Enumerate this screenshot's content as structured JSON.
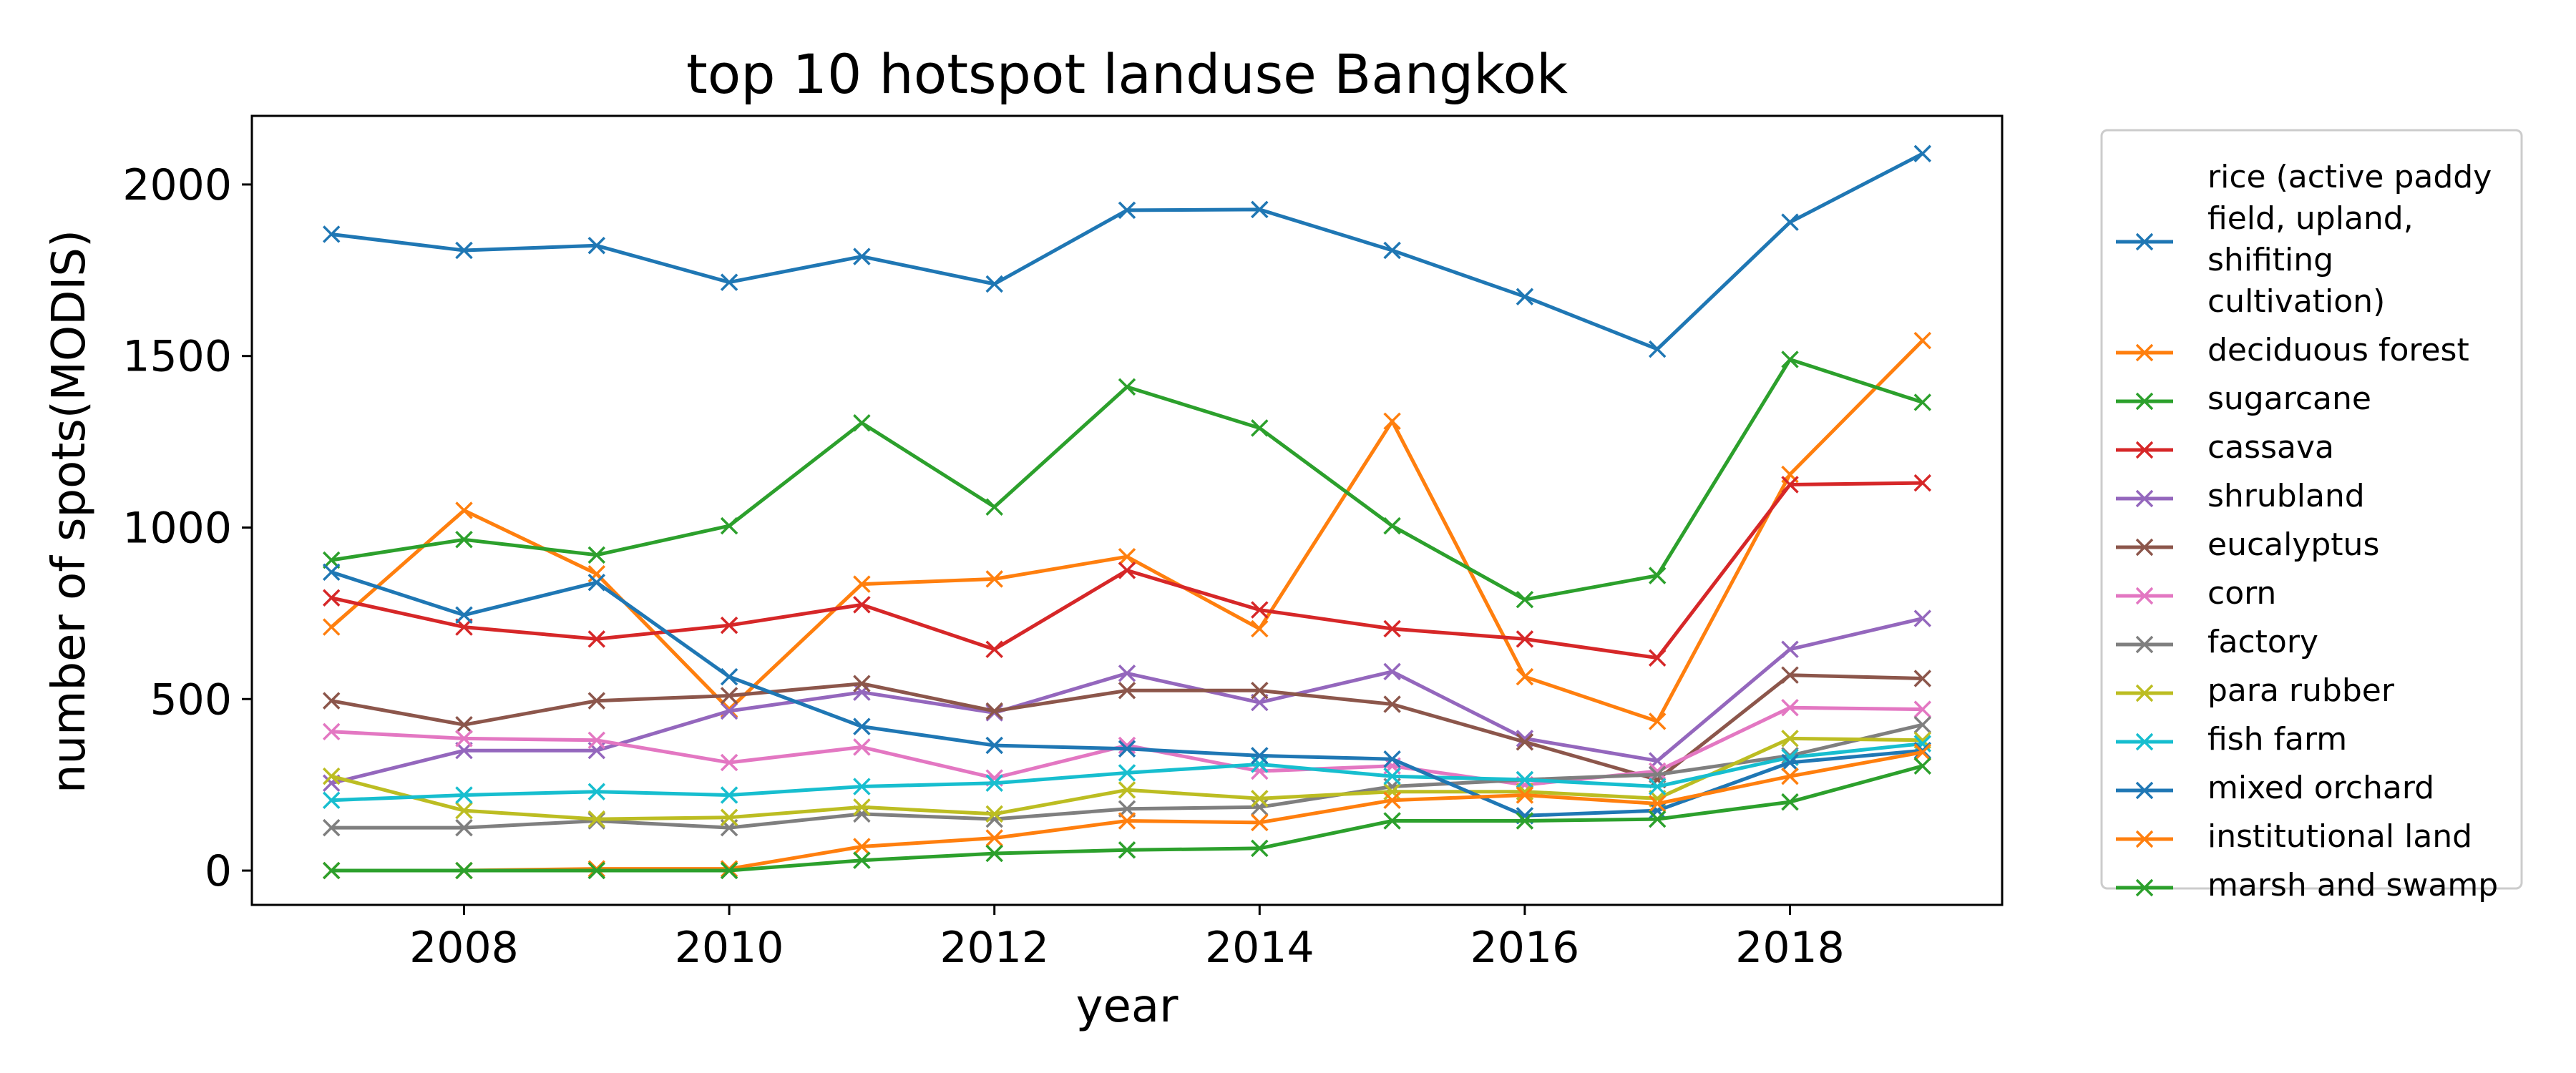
{
  "chart_data": {
    "type": "line",
    "title": "top 10 hotspot landuse Bangkok",
    "xlabel": "year",
    "ylabel": "number of spots(MODIS)",
    "x": [
      2007,
      2008,
      2009,
      2010,
      2011,
      2012,
      2013,
      2014,
      2015,
      2016,
      2017,
      2018,
      2019
    ],
    "xlim": [
      2006.4,
      2019.6
    ],
    "ylim": [
      -100,
      2200
    ],
    "xticks": [
      2008,
      2010,
      2012,
      2014,
      2016,
      2018
    ],
    "yticks": [
      0,
      500,
      1000,
      1500,
      2000
    ],
    "grid": false,
    "legend_position": "outside-right",
    "marker": "x",
    "series": [
      {
        "name": "rice (active paddy field, upland, shifiting cultivation)",
        "legend_lines": [
          "rice (active paddy",
          "field, upland,",
          "shifiting",
          "cultivation)"
        ],
        "color": "#1f77b4",
        "values": [
          1855,
          1808,
          1822,
          1715,
          1790,
          1710,
          1925,
          1927,
          1808,
          1673,
          1520,
          1890,
          2090
        ]
      },
      {
        "name": "deciduous forest",
        "legend_lines": [
          "deciduous forest"
        ],
        "color": "#ff7f0e",
        "values": [
          710,
          1050,
          865,
          470,
          835,
          850,
          915,
          705,
          1310,
          565,
          435,
          1155,
          1545
        ]
      },
      {
        "name": "sugarcane",
        "legend_lines": [
          "sugarcane"
        ],
        "color": "#2ca02c",
        "values": [
          905,
          965,
          920,
          1005,
          1305,
          1060,
          1410,
          1290,
          1005,
          790,
          860,
          1490,
          1365
        ]
      },
      {
        "name": "cassava",
        "legend_lines": [
          "cassava"
        ],
        "color": "#d62728",
        "values": [
          795,
          710,
          675,
          715,
          775,
          645,
          875,
          760,
          705,
          675,
          620,
          1125,
          1130
        ]
      },
      {
        "name": "shrubland",
        "legend_lines": [
          "shrubland"
        ],
        "color": "#9467bd",
        "values": [
          255,
          350,
          350,
          465,
          520,
          460,
          575,
          490,
          580,
          385,
          320,
          645,
          735
        ]
      },
      {
        "name": "eucalyptus",
        "legend_lines": [
          "eucalyptus"
        ],
        "color": "#8c564b",
        "values": [
          495,
          425,
          495,
          510,
          545,
          465,
          525,
          525,
          485,
          375,
          265,
          570,
          560
        ]
      },
      {
        "name": "corn",
        "legend_lines": [
          "corn"
        ],
        "color": "#e377c2",
        "values": [
          405,
          385,
          380,
          315,
          360,
          270,
          365,
          290,
          305,
          250,
          290,
          475,
          470
        ]
      },
      {
        "name": "factory",
        "legend_lines": [
          "factory"
        ],
        "color": "#7f7f7f",
        "values": [
          125,
          125,
          145,
          125,
          165,
          150,
          180,
          185,
          245,
          265,
          280,
          335,
          425
        ]
      },
      {
        "name": "para rubber",
        "legend_lines": [
          "para rubber"
        ],
        "color": "#bcbd22",
        "values": [
          275,
          175,
          150,
          155,
          185,
          165,
          235,
          210,
          230,
          230,
          210,
          385,
          380
        ]
      },
      {
        "name": "fish farm",
        "legend_lines": [
          "fish farm"
        ],
        "color": "#17becf",
        "values": [
          205,
          220,
          230,
          220,
          245,
          255,
          285,
          310,
          275,
          265,
          245,
          330,
          370
        ]
      },
      {
        "name": "mixed orchard",
        "legend_lines": [
          "mixed orchard"
        ],
        "color": "#1f77b4",
        "values": [
          870,
          745,
          840,
          565,
          420,
          365,
          355,
          335,
          325,
          160,
          175,
          315,
          350
        ]
      },
      {
        "name": "institutional land",
        "legend_lines": [
          "institutional land"
        ],
        "color": "#ff7f0e",
        "values": [
          0,
          0,
          5,
          5,
          70,
          95,
          145,
          140,
          205,
          220,
          195,
          275,
          345
        ]
      },
      {
        "name": "marsh and swamp",
        "legend_lines": [
          "marsh and swamp"
        ],
        "color": "#2ca02c",
        "values": [
          0,
          0,
          0,
          0,
          30,
          50,
          60,
          65,
          145,
          145,
          150,
          200,
          305
        ]
      }
    ]
  }
}
